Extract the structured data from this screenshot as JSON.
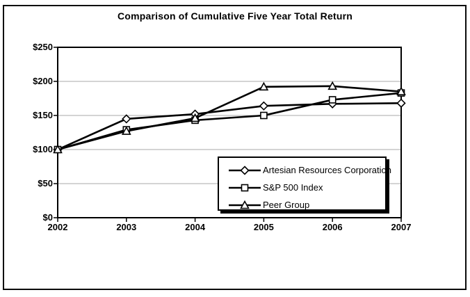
{
  "title": "Comparison of Cumulative Five Year Total Return",
  "chart_data": {
    "type": "line",
    "title": "Comparison of Cumulative Five Year Total Return",
    "categories": [
      "2002",
      "2003",
      "2004",
      "2005",
      "2006",
      "2007"
    ],
    "series": [
      {
        "name": "Artesian Resources Corporation",
        "marker": "diamond",
        "values": [
          100,
          145,
          152,
          164,
          167,
          168
        ]
      },
      {
        "name": "S&P 500 Index",
        "marker": "square",
        "values": [
          100,
          129,
          143,
          150,
          173,
          183
        ]
      },
      {
        "name": "Peer Group",
        "marker": "triangle",
        "values": [
          100,
          127,
          146,
          192,
          193,
          185
        ]
      }
    ],
    "xlabel": "",
    "ylabel": "",
    "ylim": [
      0,
      250
    ],
    "y_ticks": [
      "$0",
      "$50",
      "$100",
      "$150",
      "$200",
      "$250"
    ],
    "y_tick_values": [
      0,
      50,
      100,
      150,
      200,
      250
    ],
    "grid": "horizontal",
    "legend_position": "inside-bottom-right",
    "colors": {
      "line": "#000000",
      "grid": "#a8a8a8",
      "marker_fill": "#ffffff",
      "background": "#ffffff",
      "frame": "#0a0a0a"
    }
  }
}
